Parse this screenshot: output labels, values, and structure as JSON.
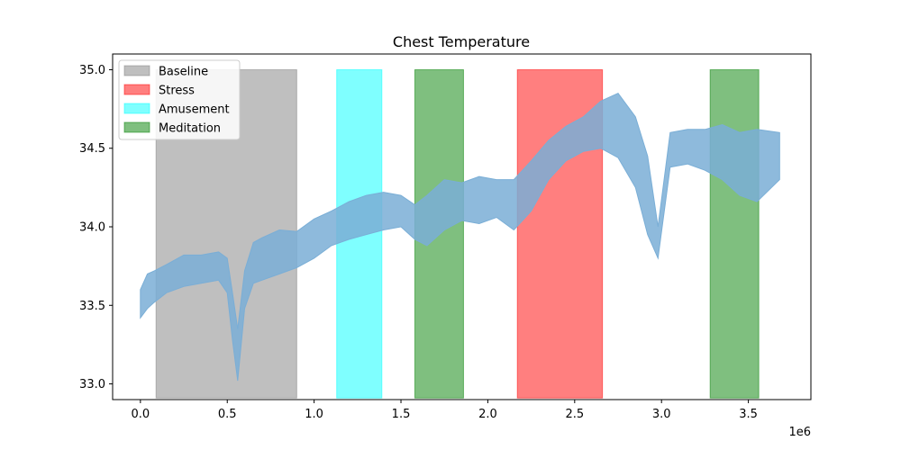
{
  "chart_data": {
    "type": "area",
    "title": "Chest Temperature",
    "xlabel": "",
    "ylabel": "",
    "x_offset_label": "1e6",
    "xlim": [
      -160000,
      3860000
    ],
    "ylim": [
      32.9,
      35.1
    ],
    "x_ticks": [
      0,
      500000,
      1000000,
      1500000,
      2000000,
      2500000,
      3000000,
      3500000
    ],
    "x_tick_labels": [
      "0.0",
      "0.5",
      "1.0",
      "1.5",
      "2.0",
      "2.5",
      "3.0",
      "3.5"
    ],
    "y_ticks": [
      33.0,
      33.5,
      34.0,
      34.5,
      35.0
    ],
    "y_tick_labels": [
      "33.0",
      "33.5",
      "34.0",
      "34.5",
      "35.0"
    ],
    "legend_position": "top-left",
    "legend": [
      {
        "name": "Baseline",
        "color": "#808080"
      },
      {
        "name": "Stress",
        "color": "#ff0000"
      },
      {
        "name": "Amusement",
        "color": "#00ffff"
      },
      {
        "name": "Meditation",
        "color": "#008000"
      }
    ],
    "regions": [
      {
        "label": "Baseline",
        "x_start": 90000,
        "x_end": 900000,
        "y_start": 32.91,
        "y_end": 35.0,
        "color": "#808080"
      },
      {
        "label": "Amusement",
        "x_start": 1130000,
        "x_end": 1390000,
        "y_start": 32.91,
        "y_end": 35.0,
        "color": "#00ffff"
      },
      {
        "label": "Meditation",
        "x_start": 1580000,
        "x_end": 1860000,
        "y_start": 32.91,
        "y_end": 35.0,
        "color": "#008000"
      },
      {
        "label": "Stress",
        "x_start": 2170000,
        "x_end": 2660000,
        "y_start": 32.91,
        "y_end": 35.0,
        "color": "#ff0000"
      },
      {
        "label": "Meditation",
        "x_start": 3280000,
        "x_end": 3560000,
        "y_start": 32.91,
        "y_end": 35.0,
        "color": "#008000"
      }
    ],
    "series": [
      {
        "color": "#7aaed6",
        "x": [
          0,
          40000,
          80000,
          150000,
          250000,
          350000,
          450000,
          500000,
          530000,
          560000,
          600000,
          650000,
          700000,
          800000,
          900000,
          1000000,
          1100000,
          1200000,
          1300000,
          1400000,
          1500000,
          1580000,
          1650000,
          1750000,
          1850000,
          1950000,
          2050000,
          2150000,
          2250000,
          2350000,
          2450000,
          2550000,
          2650000,
          2750000,
          2850000,
          2920000,
          2980000,
          3050000,
          3150000,
          3250000,
          3350000,
          3450000,
          3550000,
          3680000
        ],
        "upper": [
          33.6,
          33.7,
          33.72,
          33.76,
          33.82,
          33.82,
          33.84,
          33.8,
          33.58,
          33.35,
          33.72,
          33.9,
          33.93,
          33.98,
          33.97,
          34.05,
          34.1,
          34.16,
          34.2,
          34.22,
          34.2,
          34.14,
          34.2,
          34.3,
          34.28,
          34.32,
          34.3,
          34.3,
          34.42,
          34.55,
          34.64,
          34.7,
          34.8,
          34.85,
          34.7,
          34.45,
          34.0,
          34.6,
          34.62,
          34.62,
          34.65,
          34.6,
          34.62,
          34.6
        ],
        "lower": [
          33.42,
          33.48,
          33.52,
          33.58,
          33.62,
          33.64,
          33.66,
          33.58,
          33.28,
          33.02,
          33.48,
          33.64,
          33.66,
          33.7,
          33.74,
          33.8,
          33.88,
          33.92,
          33.95,
          33.98,
          34.0,
          33.92,
          33.88,
          33.98,
          34.04,
          34.02,
          34.06,
          33.98,
          34.1,
          34.3,
          34.42,
          34.48,
          34.5,
          34.44,
          34.25,
          33.95,
          33.8,
          34.38,
          34.4,
          34.36,
          34.3,
          34.2,
          34.16,
          34.3
        ]
      }
    ]
  }
}
